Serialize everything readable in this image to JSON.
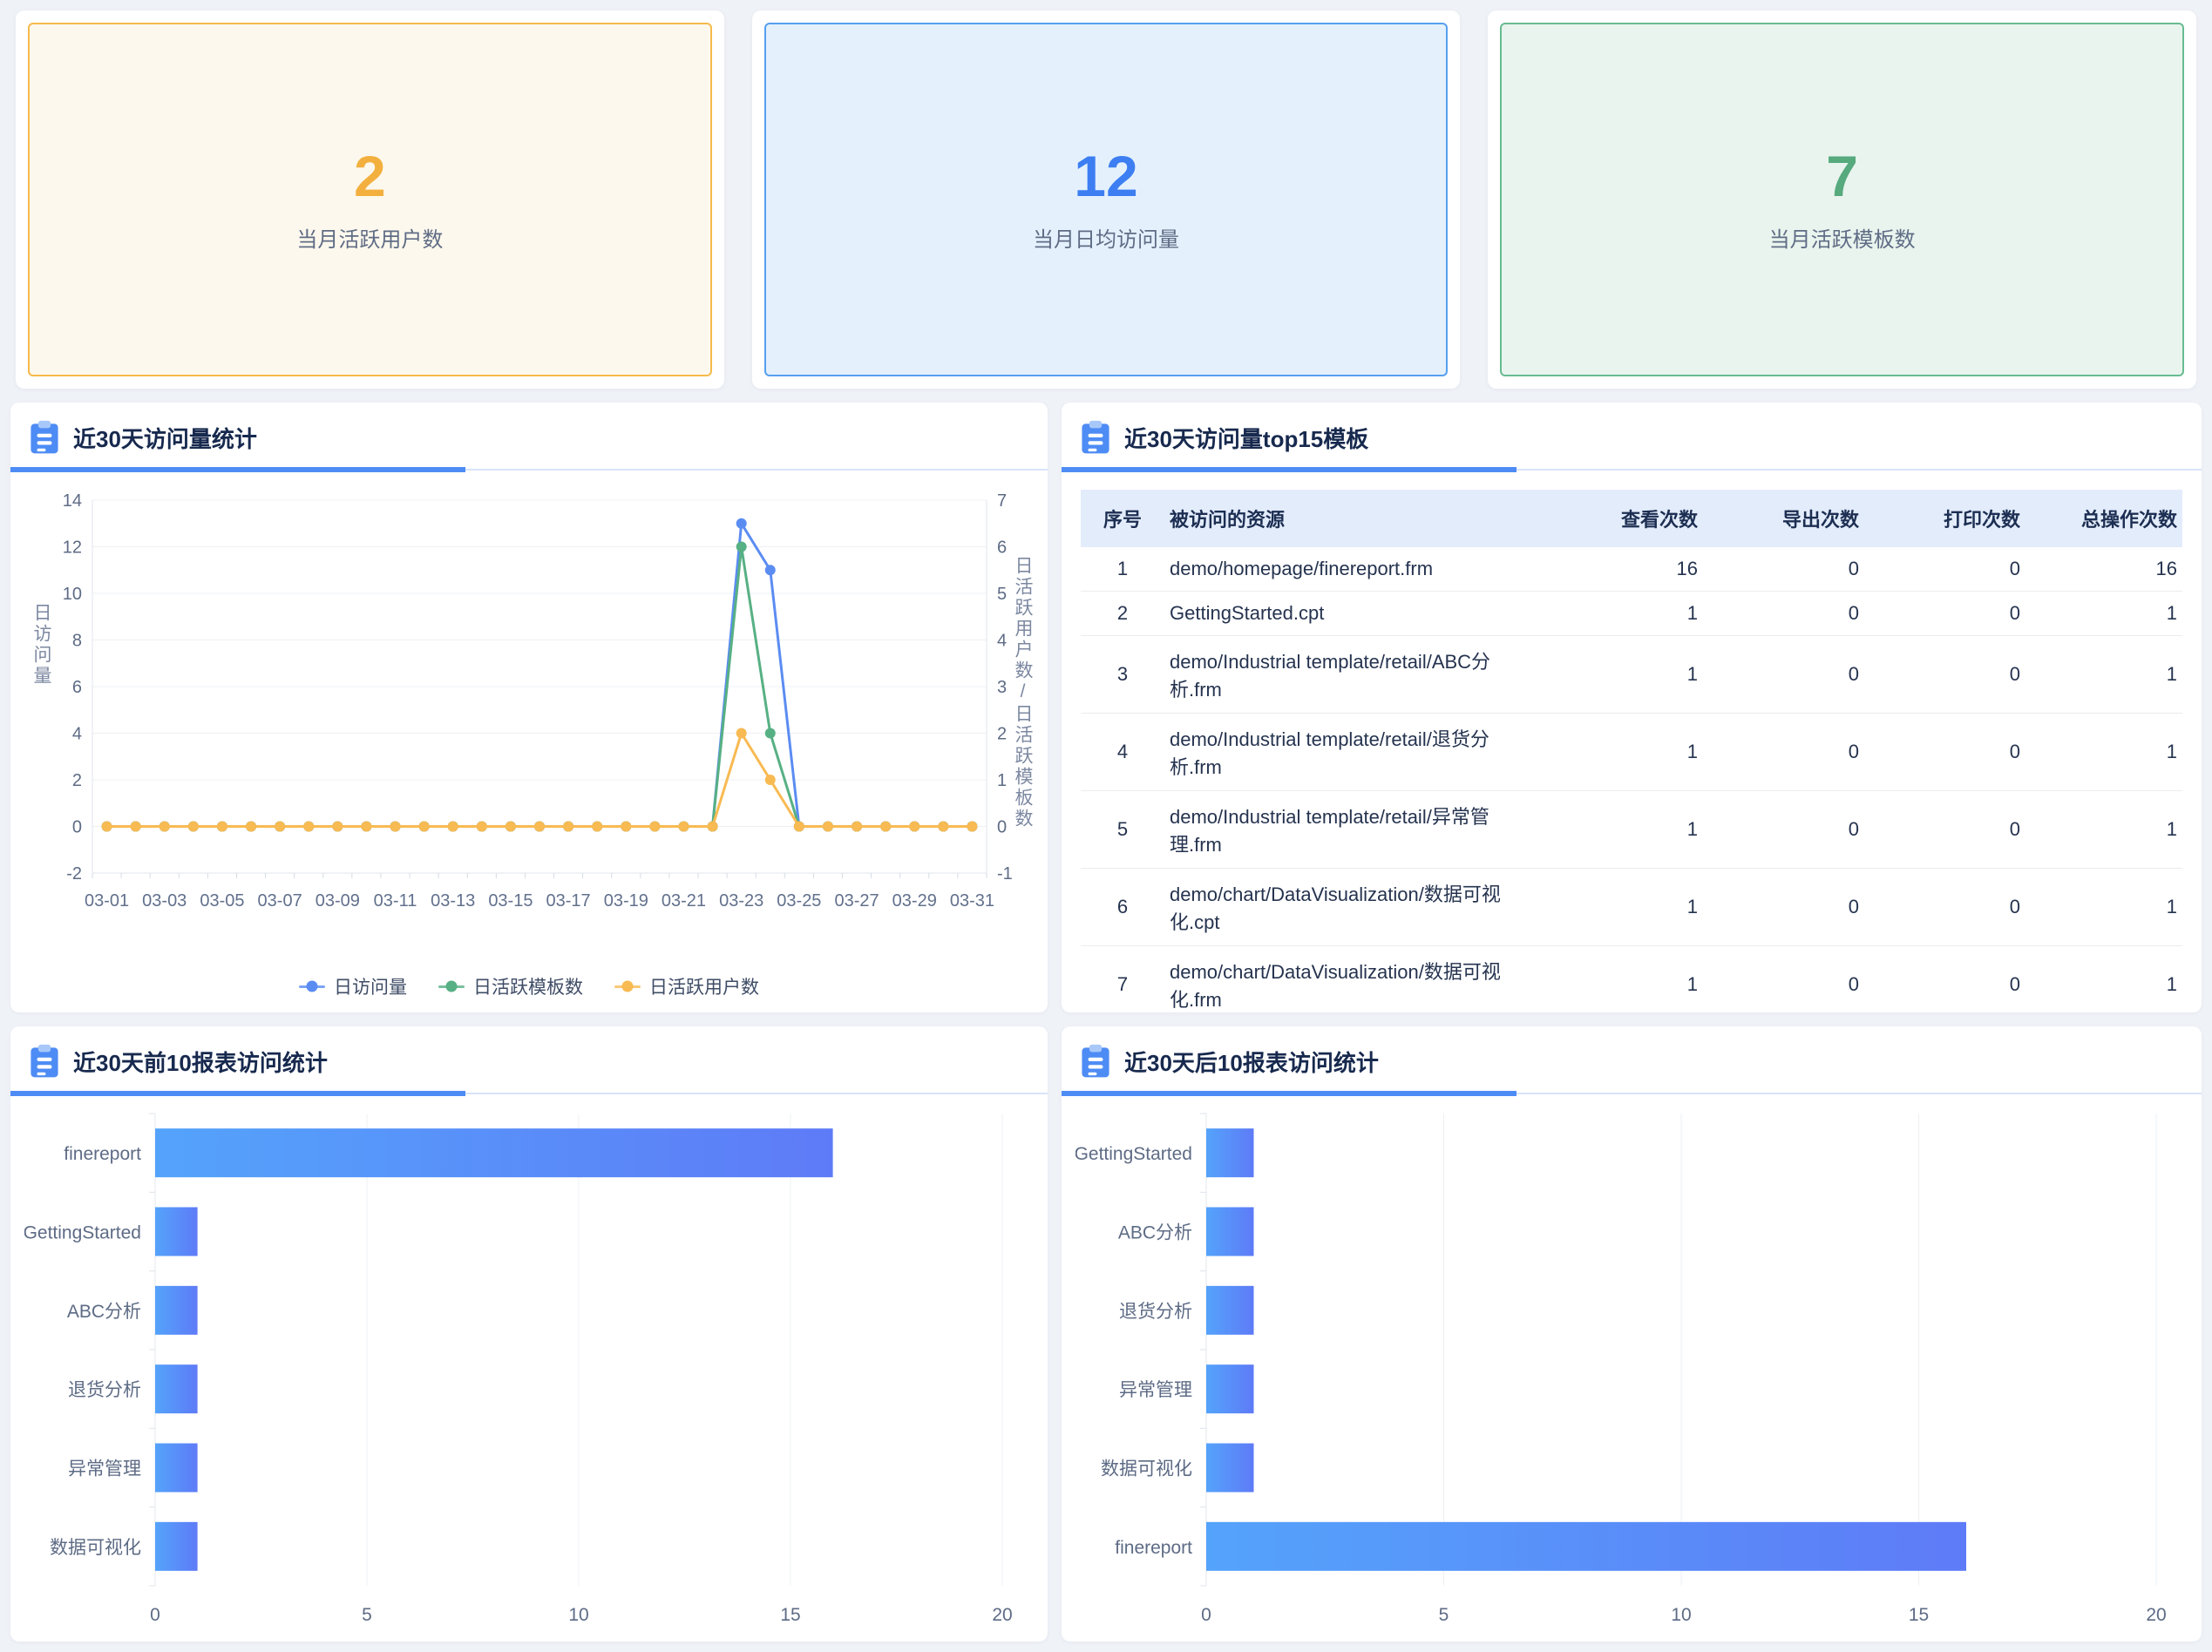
{
  "accent_color": "#4e8cf5",
  "stat_cards": [
    {
      "value": "2",
      "label": "当月活跃用户数",
      "number_color": "#f3b03f",
      "bg": "#fdf8ed",
      "border": "#f6ba4b"
    },
    {
      "value": "12",
      "label": "当月日均访问量",
      "number_color": "#3d7ff2",
      "bg": "#e4f1fd",
      "border": "#569fee"
    },
    {
      "value": "7",
      "label": "当月活跃模板数",
      "number_color": "#56aa7d",
      "bg": "#e9f4ee",
      "border": "#67bb91"
    }
  ],
  "panels": {
    "line": {
      "title": "近30天访问量统计"
    },
    "table": {
      "title": "近30天访问量top15模板"
    },
    "bar_top": {
      "title": "近30天前10报表访问统计"
    },
    "bar_bottom": {
      "title": "近30天后10报表访问统计"
    }
  },
  "icons": {
    "header_icon": "clipboard-icon"
  },
  "chart_data": [
    {
      "type": "line",
      "title": "近30天访问量统计",
      "x": [
        "03-01",
        "03-02",
        "03-03",
        "03-04",
        "03-05",
        "03-06",
        "03-07",
        "03-08",
        "03-09",
        "03-10",
        "03-11",
        "03-12",
        "03-13",
        "03-14",
        "03-15",
        "03-16",
        "03-17",
        "03-18",
        "03-19",
        "03-20",
        "03-21",
        "03-22",
        "03-23",
        "03-24",
        "03-25",
        "03-26",
        "03-27",
        "03-28",
        "03-29",
        "03-30",
        "03-31"
      ],
      "left_axis": {
        "name": "日访问量",
        "min": -2,
        "max": 14,
        "ticks": [
          -2,
          0,
          2,
          4,
          6,
          8,
          10,
          12,
          14
        ]
      },
      "right_axis": {
        "name": "日活跃用户数/日活跃模板数",
        "min": -1,
        "max": 7,
        "ticks": [
          -1,
          0,
          1,
          2,
          3,
          4,
          5,
          6,
          7
        ]
      },
      "grid": true,
      "legend_position": "bottom",
      "series": [
        {
          "name": "日访问量",
          "color": "#5b8cf2",
          "axis": "left",
          "values": [
            0,
            0,
            0,
            0,
            0,
            0,
            0,
            0,
            0,
            0,
            0,
            0,
            0,
            0,
            0,
            0,
            0,
            0,
            0,
            0,
            0,
            0,
            13,
            11,
            0,
            0,
            0,
            0,
            0,
            0,
            0
          ]
        },
        {
          "name": "日活跃模板数",
          "color": "#57b084",
          "axis": "right",
          "values": [
            0,
            0,
            0,
            0,
            0,
            0,
            0,
            0,
            0,
            0,
            0,
            0,
            0,
            0,
            0,
            0,
            0,
            0,
            0,
            0,
            0,
            0,
            6,
            2,
            0,
            0,
            0,
            0,
            0,
            0,
            0
          ]
        },
        {
          "name": "日活跃用户数",
          "color": "#f8ba52",
          "axis": "right",
          "values": [
            0,
            0,
            0,
            0,
            0,
            0,
            0,
            0,
            0,
            0,
            0,
            0,
            0,
            0,
            0,
            0,
            0,
            0,
            0,
            0,
            0,
            0,
            2,
            1,
            0,
            0,
            0,
            0,
            0,
            0,
            0
          ]
        }
      ]
    },
    {
      "type": "table",
      "title": "近30天访问量top15模板",
      "headers": [
        "序号",
        "被访问的资源",
        "查看次数",
        "导出次数",
        "打印次数",
        "总操作次数"
      ],
      "rows": [
        [
          "1",
          "demo/homepage/finereport.frm",
          "16",
          "0",
          "0",
          "16"
        ],
        [
          "2",
          "GettingStarted.cpt",
          "1",
          "0",
          "0",
          "1"
        ],
        [
          "3",
          "demo/Industrial template/retail/ABC分析.frm",
          "1",
          "0",
          "0",
          "1"
        ],
        [
          "4",
          "demo/Industrial template/retail/退货分析.frm",
          "1",
          "0",
          "0",
          "1"
        ],
        [
          "5",
          "demo/Industrial template/retail/异常管理.frm",
          "1",
          "0",
          "0",
          "1"
        ],
        [
          "6",
          "demo/chart/DataVisualization/数据可视化.cpt",
          "1",
          "0",
          "0",
          "1"
        ],
        [
          "7",
          "demo/chart/DataVisualization/数据可视化.frm",
          "1",
          "0",
          "0",
          "1"
        ]
      ]
    },
    {
      "type": "bar",
      "orientation": "horizontal",
      "title": "近30天前10报表访问统计",
      "categories": [
        "finereport",
        "GettingStarted",
        "ABC分析",
        "退货分析",
        "异常管理",
        "数据可视化"
      ],
      "values": [
        16,
        1,
        1,
        1,
        1,
        1
      ],
      "xlim": [
        0,
        20
      ],
      "xticks": [
        0,
        5,
        10,
        15,
        20
      ],
      "bar_gradient": [
        "#54a3fb",
        "#5e7bf7"
      ]
    },
    {
      "type": "bar",
      "orientation": "horizontal",
      "title": "近30天后10报表访问统计",
      "categories": [
        "GettingStarted",
        "ABC分析",
        "退货分析",
        "异常管理",
        "数据可视化",
        "finereport"
      ],
      "values": [
        1,
        1,
        1,
        1,
        1,
        16
      ],
      "xlim": [
        0,
        20
      ],
      "xticks": [
        0,
        5,
        10,
        15,
        20
      ],
      "bar_gradient": [
        "#54a3fb",
        "#5e7bf7"
      ]
    }
  ]
}
